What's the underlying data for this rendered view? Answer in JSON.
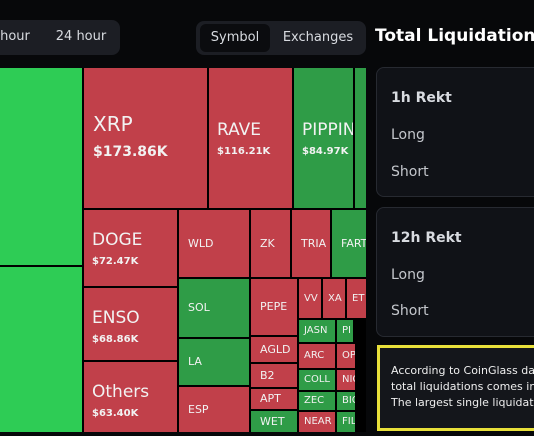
{
  "toolbar": {
    "time_tabs": [
      "hour",
      "24 hour"
    ],
    "view_tabs": [
      "Symbol",
      "Exchanges"
    ]
  },
  "treemap": {
    "tiles": [
      {
        "symbol": "XRP",
        "amount": "$173.86K"
      },
      {
        "symbol": "RAVE",
        "amount": "$116.21K"
      },
      {
        "symbol": "PIPPIN",
        "amount": "$84.97K"
      },
      {
        "symbol": "DOGE",
        "amount": "$72.47K"
      },
      {
        "symbol": "ENSO",
        "amount": "$68.86K"
      },
      {
        "symbol": "Others",
        "amount": "$63.40K"
      },
      {
        "symbol": "WLD"
      },
      {
        "symbol": "ZK"
      },
      {
        "symbol": "TRIA"
      },
      {
        "symbol": "FART"
      },
      {
        "symbol": "SOL"
      },
      {
        "symbol": "LA"
      },
      {
        "symbol": "ESP"
      },
      {
        "symbol": "PEPE"
      },
      {
        "symbol": "AGLD"
      },
      {
        "symbol": "B2"
      },
      {
        "symbol": "APT"
      },
      {
        "symbol": "WET"
      },
      {
        "symbol": "VV"
      },
      {
        "symbol": "XA"
      },
      {
        "symbol": "ET"
      },
      {
        "symbol": "JASN"
      },
      {
        "symbol": "PI"
      },
      {
        "symbol": "ARC"
      },
      {
        "symbol": "OP"
      },
      {
        "symbol": "COLL"
      },
      {
        "symbol": "NIC"
      },
      {
        "symbol": "ZEC"
      },
      {
        "symbol": "BIO"
      },
      {
        "symbol": "NEAR"
      },
      {
        "symbol": "FIL"
      }
    ]
  },
  "sidebar": {
    "title": "Total Liquidations",
    "cards": [
      {
        "title": "1h Rekt",
        "rows": [
          "Long",
          "Short"
        ]
      },
      {
        "title": "12h Rekt",
        "rows": [
          "Long",
          "Short"
        ]
      }
    ],
    "notice": [
      "According to CoinGlass da",
      "total liquidations comes in",
      "The largest single liquidati"
    ]
  }
}
